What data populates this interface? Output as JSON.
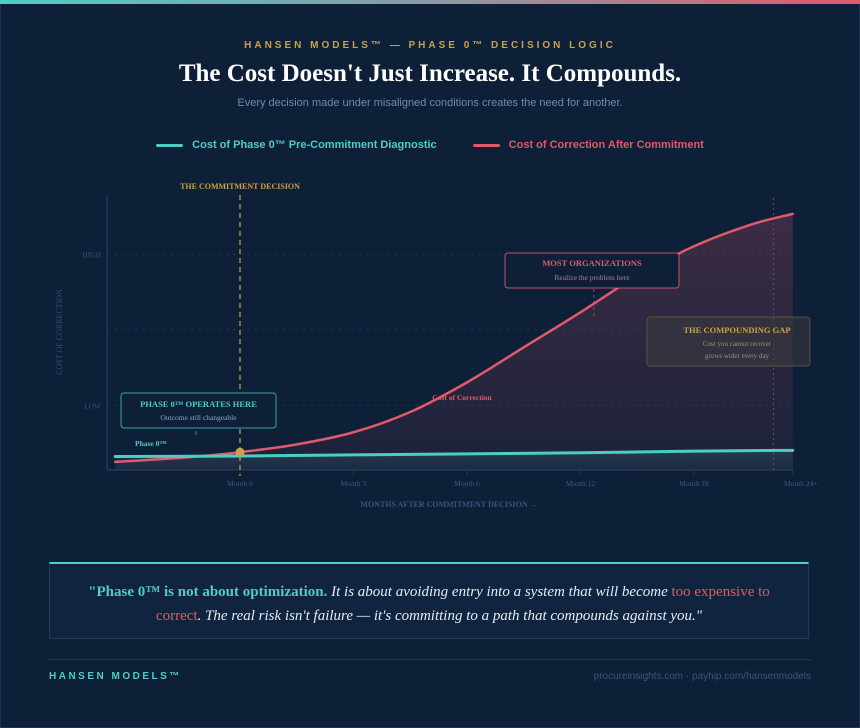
{
  "header": {
    "eyebrow": "HANSEN MODELS™ — PHASE 0™ DECISION LOGIC",
    "title": "The Cost Doesn't Just Increase. It Compounds.",
    "subtitle": "Every decision made under misaligned conditions creates the need for another."
  },
  "colors": {
    "teal": "#4ecdc4",
    "red": "#e05a6a",
    "gold": "#c9a24a",
    "background": "#0e1f38"
  },
  "chart_data": {
    "type": "line",
    "title": "",
    "xlabel": "MONTHS AFTER COMMITMENT DECISION →",
    "ylabel": "COST OF CORRECTION",
    "x_ticks": [
      "Month 0",
      "Month 3",
      "Month 6",
      "Month 12",
      "Month 18",
      "Month 24+"
    ],
    "x_tick_index": [
      0,
      1,
      2,
      3,
      4,
      4.87
    ],
    "x_range_index": [
      -1.1,
      4.87
    ],
    "y_ticks": [
      {
        "label": "HIGH",
        "value": 80
      },
      {
        "label": "LOW",
        "value": 24
      }
    ],
    "y_grid": [
      24,
      52,
      80
    ],
    "ylim": [
      0,
      102
    ],
    "grid": true,
    "legend": "top-center",
    "series": [
      {
        "name": "Cost of Phase 0™ Pre-Commitment Diagnostic",
        "color": "#4ecdc4",
        "x": [
          -1.1,
          0,
          1,
          2,
          3,
          4,
          4.87
        ],
        "y": [
          5.0,
          5.2,
          5.6,
          6.0,
          6.4,
          7.0,
          7.3
        ]
      },
      {
        "name": "Cost of Correction After Commitment",
        "color": "#e05a6a",
        "x": [
          -1.1,
          -0.5,
          0,
          0.5,
          1,
          1.5,
          2,
          2.5,
          3,
          3.5,
          4,
          4.5,
          4.87
        ],
        "y": [
          3.0,
          4.6,
          6.6,
          9.5,
          14.0,
          21.5,
          32.5,
          45.5,
          58.5,
          72.0,
          83.0,
          91.0,
          95.0
        ]
      }
    ],
    "annotations": {
      "commitment_label": "THE COMMITMENT DECISION",
      "commitment_x": 0,
      "phase0_title": "PHASE 0™ OPERATES HERE",
      "phase0_sub": "Outcome still changeable",
      "phase0_line_label": "Phase 0™",
      "most_title": "MOST ORGANIZATIONS",
      "most_sub": "Realize the problem here",
      "most_x": 3.1,
      "correction_label": "Cost of Correction",
      "gap_title": "THE COMPOUNDING GAP",
      "gap_sub1": "Cost you cannot recover",
      "gap_sub2": "grows wider every day",
      "gap_x": 4.7
    }
  },
  "quote": {
    "strong": "\"Phase 0™ is not about optimization.",
    "part1": " It is about avoiding entry into a system that will become ",
    "highlight": "too expensive to correct",
    "part2": ". The real risk isn't failure — it's committing to a path that compounds against you.\""
  },
  "footer": {
    "brand": "HANSEN MODELS™",
    "links": "procureinsights.com · payhip.com/hansenmodels"
  }
}
